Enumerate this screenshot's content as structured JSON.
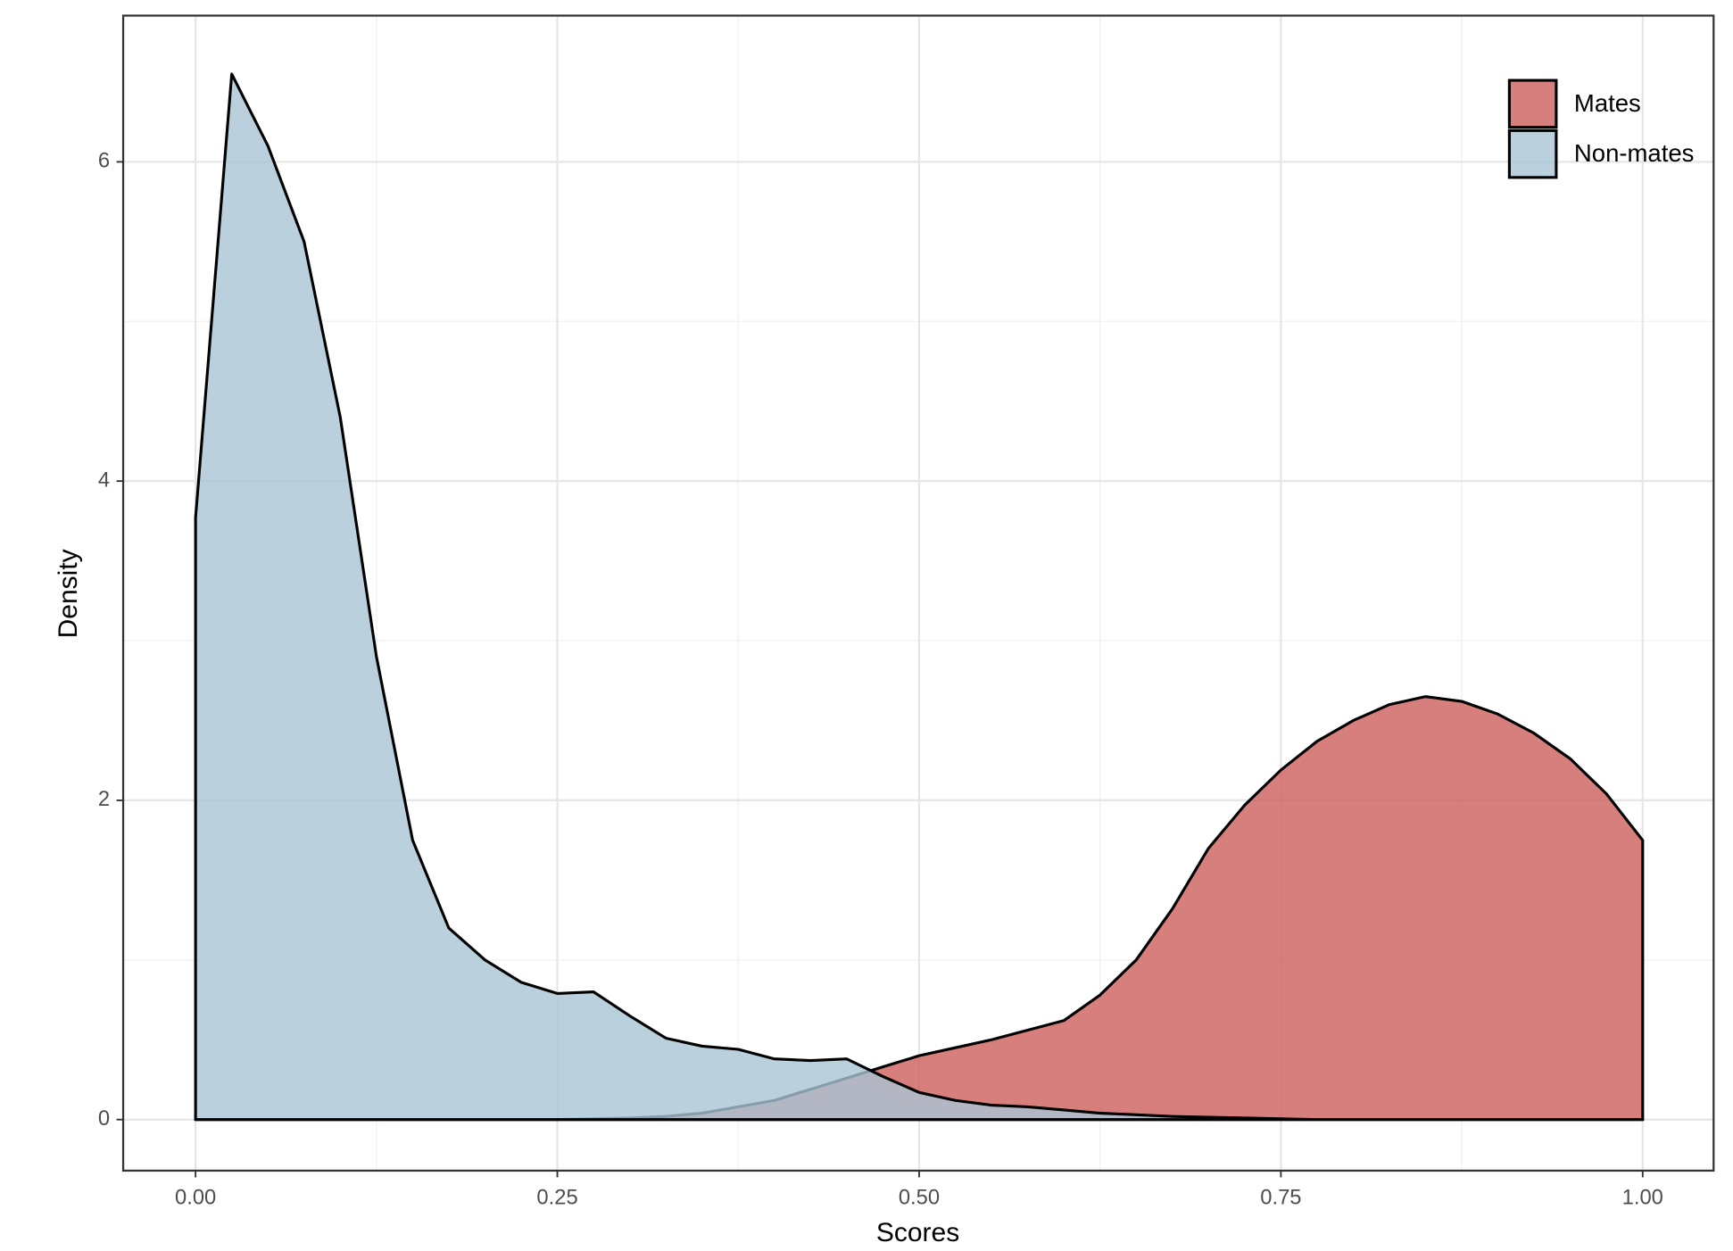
{
  "chart_data": {
    "type": "area",
    "x_label": "Scores",
    "y_label": "Density",
    "x": [
      0,
      0.025,
      0.05,
      0.075,
      0.1,
      0.125,
      0.15,
      0.175,
      0.2,
      0.225,
      0.25,
      0.275,
      0.3,
      0.325,
      0.35,
      0.375,
      0.4,
      0.425,
      0.45,
      0.475,
      0.5,
      0.525,
      0.55,
      0.575,
      0.6,
      0.625,
      0.65,
      0.675,
      0.7,
      0.725,
      0.75,
      0.775,
      0.8,
      0.825,
      0.85,
      0.875,
      0.9,
      0.925,
      0.95,
      0.975,
      1
    ],
    "series": [
      {
        "name": "Mates",
        "color": "#cc5f5b",
        "values": [
          0,
          0,
          0,
          0,
          0,
          0,
          0,
          0,
          0,
          0,
          0,
          0.005,
          0.01,
          0.02,
          0.04,
          0.08,
          0.12,
          0.19,
          0.26,
          0.33,
          0.4,
          0.45,
          0.5,
          0.56,
          0.62,
          0.78,
          1.0,
          1.32,
          1.7,
          1.97,
          2.19,
          2.37,
          2.5,
          2.6,
          2.65,
          2.62,
          2.54,
          2.42,
          2.26,
          2.04,
          1.75
        ]
      },
      {
        "name": "Non-mates",
        "color": "#a9c5d5",
        "values": [
          3.77,
          6.55,
          6.1,
          5.5,
          4.4,
          2.9,
          1.75,
          1.2,
          1.0,
          0.86,
          0.79,
          0.8,
          0.65,
          0.51,
          0.46,
          0.44,
          0.38,
          0.37,
          0.38,
          0.27,
          0.17,
          0.12,
          0.09,
          0.08,
          0.06,
          0.04,
          0.03,
          0.02,
          0.015,
          0.01,
          0.005,
          0,
          0,
          0,
          0,
          0,
          0,
          0,
          0,
          0,
          0
        ]
      }
    ],
    "xlim": [
      -0.05,
      1.049
    ],
    "ylim": [
      -0.32,
      6.916
    ],
    "xticks": [
      {
        "value": 0,
        "label": "0.00"
      },
      {
        "value": 0.25,
        "label": "0.25"
      },
      {
        "value": 0.5,
        "label": "0.50"
      },
      {
        "value": 0.75,
        "label": "0.75"
      },
      {
        "value": 1,
        "label": "1.00"
      }
    ],
    "yticks": [
      0,
      2,
      4,
      6
    ],
    "grid": true,
    "legend_position": "top-right"
  }
}
